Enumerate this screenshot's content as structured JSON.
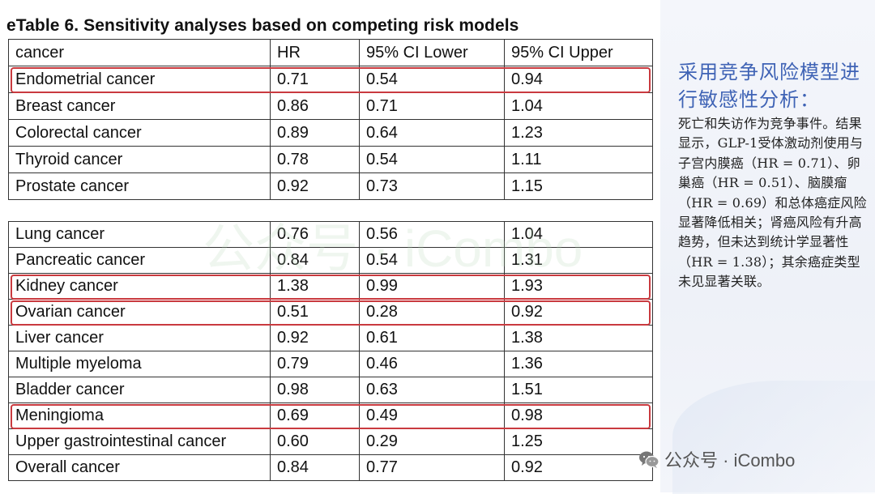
{
  "title": "eTable 6. Sensitivity analyses based on competing risk models",
  "table_top": {
    "header": [
      "cancer",
      "HR",
      "95% CI Lower",
      "95% CI Upper"
    ],
    "rows": [
      [
        "Endometrial cancer",
        "0.71",
        "0.54",
        "0.94"
      ],
      [
        "Breast cancer",
        "0.86",
        "0.71",
        "1.04"
      ],
      [
        "Colorectal cancer",
        "0.89",
        "0.64",
        "1.23"
      ],
      [
        "Thyroid cancer",
        "0.78",
        "0.54",
        "1.11"
      ],
      [
        "Prostate cancer",
        "0.92",
        "0.73",
        "1.15"
      ]
    ],
    "highlighted_rows": [
      0
    ]
  },
  "table_bottom": {
    "rows": [
      [
        "Lung cancer",
        "0.76",
        "0.56",
        "1.04"
      ],
      [
        "Pancreatic cancer",
        "0.84",
        "0.54",
        "1.31"
      ],
      [
        "Kidney cancer",
        "1.38",
        "0.99",
        "1.93"
      ],
      [
        "Ovarian cancer",
        "0.51",
        "0.28",
        "0.92"
      ],
      [
        "Liver cancer",
        "0.92",
        "0.61",
        "1.38"
      ],
      [
        "Multiple myeloma",
        "0.79",
        "0.46",
        "1.36"
      ],
      [
        "Bladder cancer",
        "0.98",
        "0.63",
        "1.51"
      ],
      [
        "Meningioma",
        "0.69",
        "0.49",
        "0.98"
      ],
      [
        "Upper gastrointestinal cancer",
        "0.60",
        "0.29",
        "1.25"
      ],
      [
        "Overall cancer",
        "0.84",
        "0.77",
        "0.92"
      ]
    ],
    "highlighted_rows": [
      2,
      3,
      7
    ]
  },
  "highlight_color": "#c93a3f",
  "side_panel": {
    "heading": "采用竞争风险模型进行敏感性分析：",
    "body": "死亡和失访作为竞争事件。结果显示，GLP-1受体激动剂使用与子宫内膜癌（HR = 0.71）、卵巢癌（HR = 0.51）、脑膜瘤（HR = 0.69）和总体癌症风险显著降低相关；肾癌风险有升高趋势，但未达到统计学显著性（HR = 1.38）；其余癌症类型未见显著关联。",
    "heading_color": "#3f63b5"
  },
  "watermark": {
    "text": "公众号 · iCombo",
    "icon": "wechat-icon"
  },
  "footer_watermark": {
    "text": "公众号 · iCombo",
    "icon": "wechat-icon"
  }
}
